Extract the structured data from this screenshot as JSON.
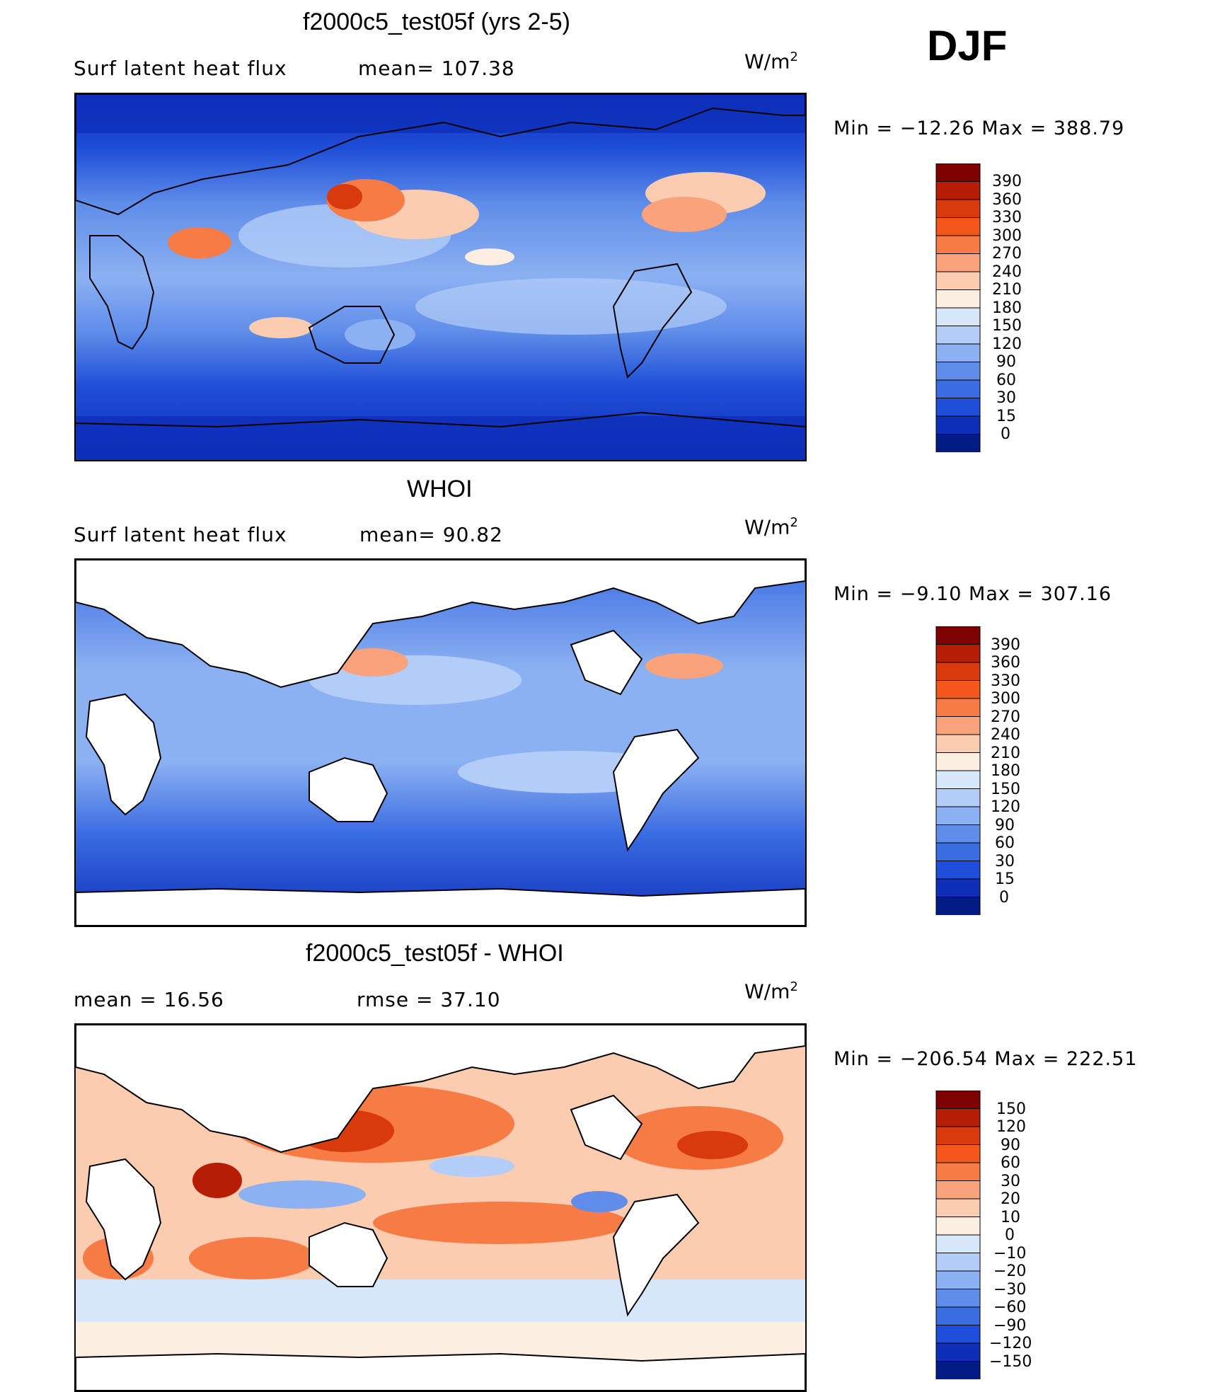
{
  "header": {
    "season": "DJF"
  },
  "units": {
    "base": "W/m",
    "exp": "2"
  },
  "panels": [
    {
      "title": "f2000c5_test05f (yrs 2-5)",
      "left_label": "Surf  latent  heat  flux",
      "mid_label": "mean=  107.38",
      "minmax": "Min  =  −12.26  Max  =  388.79"
    },
    {
      "title": "WHOI",
      "left_label": "Surf  latent  heat  flux",
      "mid_label": "mean=   90.82",
      "minmax": "Min  =    −9.10  Max  =  307.16"
    },
    {
      "title": "f2000c5_test05f - WHOI",
      "left_label": "mean  =     16.56",
      "mid_label": "rmse  =     37.10",
      "minmax": "Min  =  −206.54  Max  =  222.51"
    }
  ],
  "chart_data": [
    {
      "type": "heatmap",
      "title": "f2000c5_test05f (yrs 2-5)",
      "variable": "Surf latent heat flux",
      "units": "W/m2",
      "mean": 107.38,
      "min": -12.26,
      "max": 388.79,
      "colorbar_levels": [
        "390",
        "360",
        "330",
        "300",
        "270",
        "240",
        "210",
        "180",
        "150",
        "120",
        "90",
        "60",
        "30",
        "15",
        "0"
      ],
      "colorbar_colors": [
        "#7f0000",
        "#b51d04",
        "#d83a0e",
        "#f4561c",
        "#f77b45",
        "#f9a27c",
        "#fbccb0",
        "#fdeee2",
        "#d7e7fa",
        "#b2cdf7",
        "#8cb1f2",
        "#5f8de9",
        "#3a6ce2",
        "#1f4ed8",
        "#0e2fba",
        "#021a84"
      ]
    },
    {
      "type": "heatmap",
      "title": "WHOI",
      "variable": "Surf latent heat flux",
      "units": "W/m2",
      "mean": 90.82,
      "min": -9.1,
      "max": 307.16,
      "colorbar_levels": [
        "390",
        "360",
        "330",
        "300",
        "270",
        "240",
        "210",
        "180",
        "150",
        "120",
        "90",
        "60",
        "30",
        "15",
        "0"
      ],
      "colorbar_colors": [
        "#7f0000",
        "#b51d04",
        "#d83a0e",
        "#f4561c",
        "#f77b45",
        "#f9a27c",
        "#fbccb0",
        "#fdeee2",
        "#d7e7fa",
        "#b2cdf7",
        "#8cb1f2",
        "#5f8de9",
        "#3a6ce2",
        "#1f4ed8",
        "#0e2fba",
        "#021a84"
      ]
    },
    {
      "type": "heatmap",
      "title": "f2000c5_test05f - WHOI",
      "units": "W/m2",
      "mean": 16.56,
      "rmse": 37.1,
      "min": -206.54,
      "max": 222.51,
      "colorbar_levels": [
        "150",
        "120",
        "90",
        "60",
        "30",
        "20",
        "10",
        "0",
        "−10",
        "−20",
        "−30",
        "−60",
        "−90",
        "−120",
        "−150"
      ],
      "colorbar_colors": [
        "#7f0000",
        "#b51d04",
        "#d83a0e",
        "#f4561c",
        "#f77b45",
        "#f9a27c",
        "#fbccb0",
        "#fdeee2",
        "#d7e7fa",
        "#b2cdf7",
        "#8cb1f2",
        "#5f8de9",
        "#3a6ce2",
        "#1f4ed8",
        "#0e2fba",
        "#021a84"
      ]
    }
  ]
}
